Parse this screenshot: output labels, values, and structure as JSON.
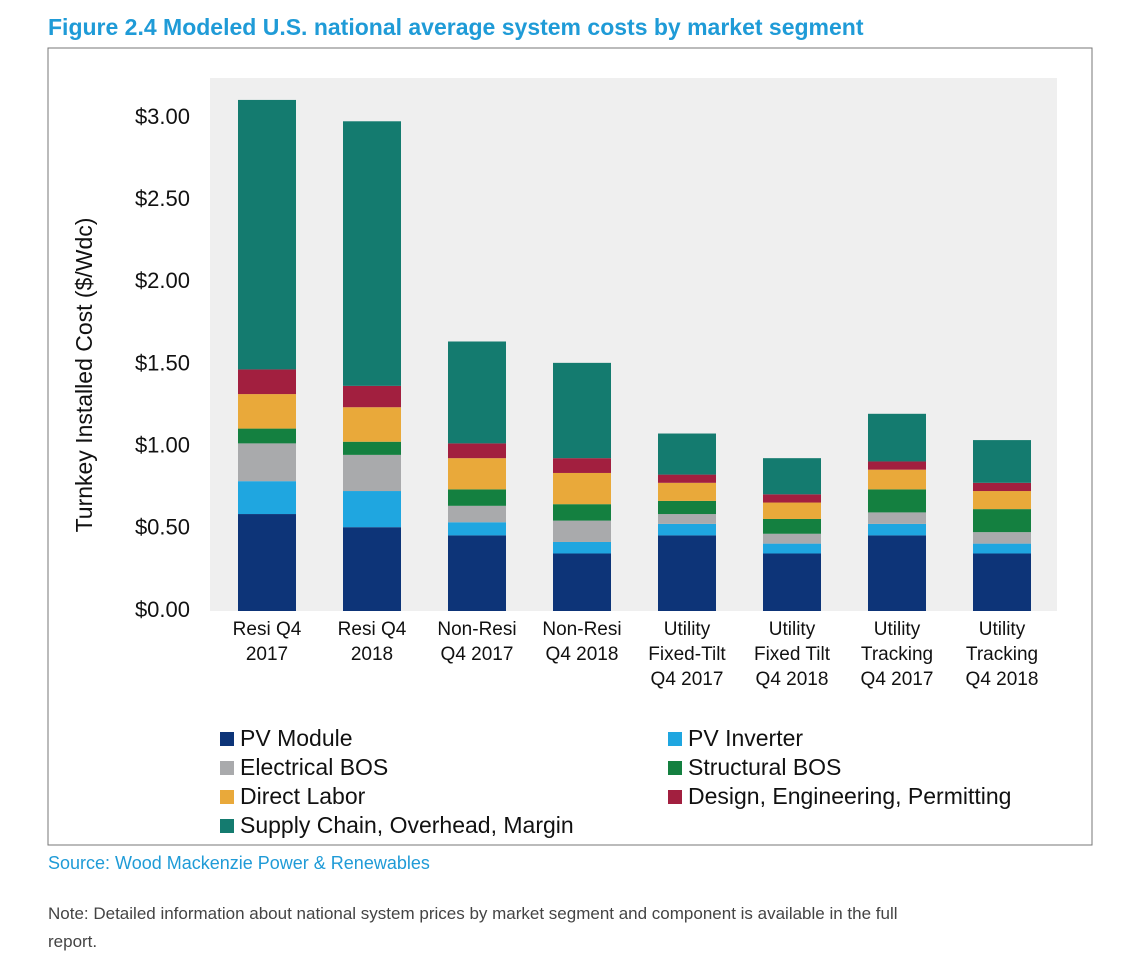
{
  "chart_data": {
    "type": "stacked_bar",
    "title": "Figure 2.4 Modeled U.S. national average system costs by market segment",
    "y_label": "Turnkey Installed Cost ($/Wdc)",
    "source": "Source: Wood Mackenzie Power & Renewables",
    "note": "Note: Detailed information about national system prices by market segment and component is available in the full report.",
    "categories": [
      "Resi Q4\n2017",
      "Resi Q4\n2018",
      "Non-Resi\nQ4 2017",
      "Non-Resi\nQ4 2018",
      "Utility\nFixed-Tilt\nQ4 2017",
      "Utility\nFixed Tilt\nQ4 2018",
      "Utility\nTracking\nQ4 2017",
      "Utility\nTracking\nQ4 2018"
    ],
    "series": [
      {
        "name": "PV Module",
        "color": "#0d3478",
        "values": [
          0.59,
          0.51,
          0.46,
          0.35,
          0.46,
          0.35,
          0.46,
          0.35
        ]
      },
      {
        "name": "PV Inverter",
        "color": "#1fa6e0",
        "values": [
          0.2,
          0.22,
          0.08,
          0.07,
          0.07,
          0.06,
          0.07,
          0.06
        ]
      },
      {
        "name": "Electrical BOS",
        "color": "#a9aaac",
        "values": [
          0.23,
          0.22,
          0.1,
          0.13,
          0.06,
          0.06,
          0.07,
          0.07
        ]
      },
      {
        "name": "Structural BOS",
        "color": "#148040",
        "values": [
          0.09,
          0.08,
          0.1,
          0.1,
          0.08,
          0.09,
          0.14,
          0.14
        ]
      },
      {
        "name": "Direct Labor",
        "color": "#e9a93a",
        "values": [
          0.21,
          0.21,
          0.19,
          0.19,
          0.11,
          0.1,
          0.12,
          0.11
        ]
      },
      {
        "name": "Design, Engineering, Permitting",
        "color": "#a21f3f",
        "values": [
          0.15,
          0.13,
          0.09,
          0.09,
          0.05,
          0.05,
          0.05,
          0.05
        ]
      },
      {
        "name": "Supply Chain, Overhead, Margin",
        "color": "#147b6f",
        "values": [
          1.64,
          1.61,
          0.62,
          0.58,
          0.25,
          0.22,
          0.29,
          0.26
        ]
      }
    ],
    "ylim": [
      0,
      3.25
    ],
    "yticks": [
      {
        "value": 0,
        "label": "$0.00"
      },
      {
        "value": 0.5,
        "label": "$0.50"
      },
      {
        "value": 1,
        "label": "$1.00"
      },
      {
        "value": 1.5,
        "label": "$1.50"
      },
      {
        "value": 2,
        "label": "$2.00"
      },
      {
        "value": 2.5,
        "label": "$2.50"
      },
      {
        "value": 3,
        "label": "$3.00"
      }
    ],
    "grid": false,
    "legend": "bottom"
  }
}
